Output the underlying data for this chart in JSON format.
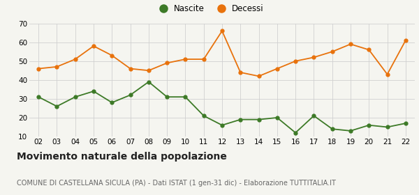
{
  "years": [
    "02",
    "03",
    "04",
    "05",
    "06",
    "07",
    "08",
    "09",
    "10",
    "11",
    "12",
    "13",
    "14",
    "15",
    "16",
    "17",
    "18",
    "19",
    "20",
    "21",
    "22"
  ],
  "nascite": [
    31,
    26,
    31,
    34,
    28,
    32,
    39,
    31,
    31,
    21,
    16,
    19,
    19,
    20,
    12,
    21,
    14,
    13,
    16,
    15,
    17
  ],
  "decessi": [
    46,
    47,
    51,
    58,
    53,
    46,
    45,
    49,
    51,
    51,
    66,
    44,
    42,
    46,
    50,
    52,
    55,
    59,
    56,
    43,
    61
  ],
  "nascite_color": "#3d7a27",
  "decessi_color": "#e8720c",
  "background_color": "#f5f5f0",
  "grid_color": "#d0d0d0",
  "ylim": [
    10,
    70
  ],
  "yticks": [
    10,
    20,
    30,
    40,
    50,
    60,
    70
  ],
  "title": "Movimento naturale della popolazione",
  "subtitle": "COMUNE DI CASTELLANA SICULA (PA) - Dati ISTAT (1 gen-31 dic) - Elaborazione TUTTITALIA.IT",
  "legend_labels": [
    "Nascite",
    "Decessi"
  ],
  "title_fontsize": 10,
  "subtitle_fontsize": 7,
  "axis_fontsize": 7.5,
  "legend_fontsize": 8.5,
  "marker_size": 3.5,
  "line_width": 1.3
}
